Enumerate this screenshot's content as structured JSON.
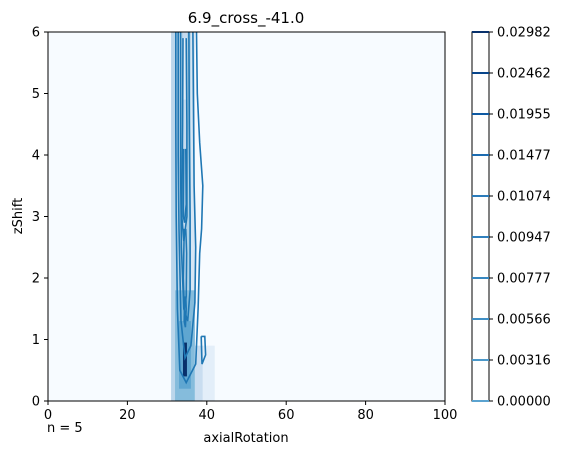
{
  "chart_data": {
    "type": "heatmap",
    "title": "6.9_cross_-41.0",
    "xlabel": "axialRotation",
    "ylabel": "zShift",
    "xlim": [
      0,
      100
    ],
    "ylim": [
      0,
      6
    ],
    "x_ticks": [
      "0",
      "20",
      "40",
      "60",
      "80",
      "100"
    ],
    "y_ticks": [
      "0",
      "1",
      "2",
      "3",
      "4",
      "5",
      "6"
    ],
    "annotation": "n = 5",
    "colormap": "Blues",
    "contour_color": "#1f77b4",
    "colorbar": {
      "levels": [
        0.0,
        0.00316,
        0.00566,
        0.00777,
        0.00947,
        0.01074,
        0.01477,
        0.01955,
        0.02462,
        0.02982
      ],
      "tick_labels": [
        "0.00000",
        "0.00316",
        "0.00566",
        "0.00777",
        "0.00947",
        "0.01074",
        "0.01477",
        "0.01955",
        "0.02462",
        "0.02982"
      ]
    },
    "cells": [
      {
        "x": [
          31,
          32
        ],
        "y": [
          0,
          6
        ],
        "v": 0.0085
      },
      {
        "x": [
          32,
          34
        ],
        "y": [
          0,
          6
        ],
        "v": 0.009
      },
      {
        "x": [
          34,
          35
        ],
        "y": [
          0,
          6
        ],
        "v": 0.0075
      },
      {
        "x": [
          35,
          36
        ],
        "y": [
          0,
          6
        ],
        "v": 0.0095
      },
      {
        "x": [
          36,
          37
        ],
        "y": [
          0,
          6
        ],
        "v": 0.005
      },
      {
        "x": [
          32,
          37
        ],
        "y": [
          0.0,
          1.8
        ],
        "v": 0.013
      },
      {
        "x": [
          33,
          36
        ],
        "y": [
          0.2,
          1.3
        ],
        "v": 0.016
      },
      {
        "x": [
          34,
          35
        ],
        "y": [
          0.4,
          0.95
        ],
        "v": 0.0298
      },
      {
        "x": [
          37,
          39
        ],
        "y": [
          0,
          0.9
        ],
        "v": 0.007
      },
      {
        "x": [
          39,
          42
        ],
        "y": [
          0,
          0.9
        ],
        "v": 0.003
      },
      {
        "x": [
          34,
          35
        ],
        "y": [
          4.9,
          5.9
        ],
        "v": 0.0035
      }
    ],
    "contours": [
      {
        "level": 0.00316,
        "points": [
          [
            32.2,
            6
          ],
          [
            32.2,
            4.5
          ],
          [
            32.3,
            3
          ],
          [
            32.6,
            1.5
          ],
          [
            33.2,
            0.5
          ],
          [
            34.8,
            0.3
          ],
          [
            37.2,
            0.6
          ],
          [
            37.8,
            1.5
          ],
          [
            38.2,
            2.4
          ],
          [
            38.7,
            2.8
          ],
          [
            39,
            3.5
          ],
          [
            38.2,
            4.2
          ],
          [
            37.6,
            5
          ],
          [
            37.4,
            6
          ]
        ]
      },
      {
        "level": 0.00566,
        "points": [
          [
            32.8,
            6
          ],
          [
            32.8,
            4
          ],
          [
            33,
            2.8
          ],
          [
            33.5,
            1.3
          ],
          [
            34.5,
            0.7
          ],
          [
            36,
            0.9
          ],
          [
            37,
            1.6
          ],
          [
            37.2,
            2.5
          ],
          [
            36.8,
            3.5
          ],
          [
            36.5,
            6
          ]
        ]
      },
      {
        "level": 0.00777,
        "points": [
          [
            33.4,
            6
          ],
          [
            33.4,
            3.8
          ],
          [
            33.6,
            2.5
          ],
          [
            34.2,
            1.5
          ],
          [
            35.2,
            1.3
          ],
          [
            35.8,
            1.8
          ],
          [
            35.8,
            3
          ],
          [
            35.6,
            4.5
          ],
          [
            35.5,
            6
          ]
        ]
      },
      {
        "level": 0.00947,
        "points": [
          [
            34,
            5.9
          ],
          [
            33.9,
            4.5
          ],
          [
            33.7,
            3
          ],
          [
            34.2,
            2.6
          ],
          [
            35,
            3
          ],
          [
            35,
            4.5
          ],
          [
            34.8,
            5.9
          ]
        ]
      },
      {
        "level": 0.01074,
        "points": [
          [
            34.2,
            4.1
          ],
          [
            34.1,
            3
          ],
          [
            34.4,
            2.9
          ],
          [
            34.8,
            3.2
          ],
          [
            34.7,
            4.1
          ]
        ]
      },
      {
        "level": 0.01477,
        "points": [
          [
            34.3,
            2.8
          ],
          [
            34.1,
            2
          ],
          [
            34.3,
            1.5
          ],
          [
            34.8,
            1.7
          ],
          [
            34.9,
            2.4
          ],
          [
            34.7,
            2.8
          ]
        ]
      },
      {
        "level": 0.01955,
        "points": [
          [
            34.4,
            1.7
          ],
          [
            34.3,
            1.3
          ],
          [
            34.6,
            1.2
          ],
          [
            34.8,
            1.5
          ],
          [
            34.7,
            1.7
          ]
        ]
      },
      {
        "level": 0.00316,
        "points": [
          [
            38.6,
            1.05
          ],
          [
            38.8,
            0.6
          ],
          [
            39.7,
            0.75
          ],
          [
            39.5,
            1.05
          ],
          [
            38.6,
            1.05
          ]
        ]
      }
    ]
  }
}
